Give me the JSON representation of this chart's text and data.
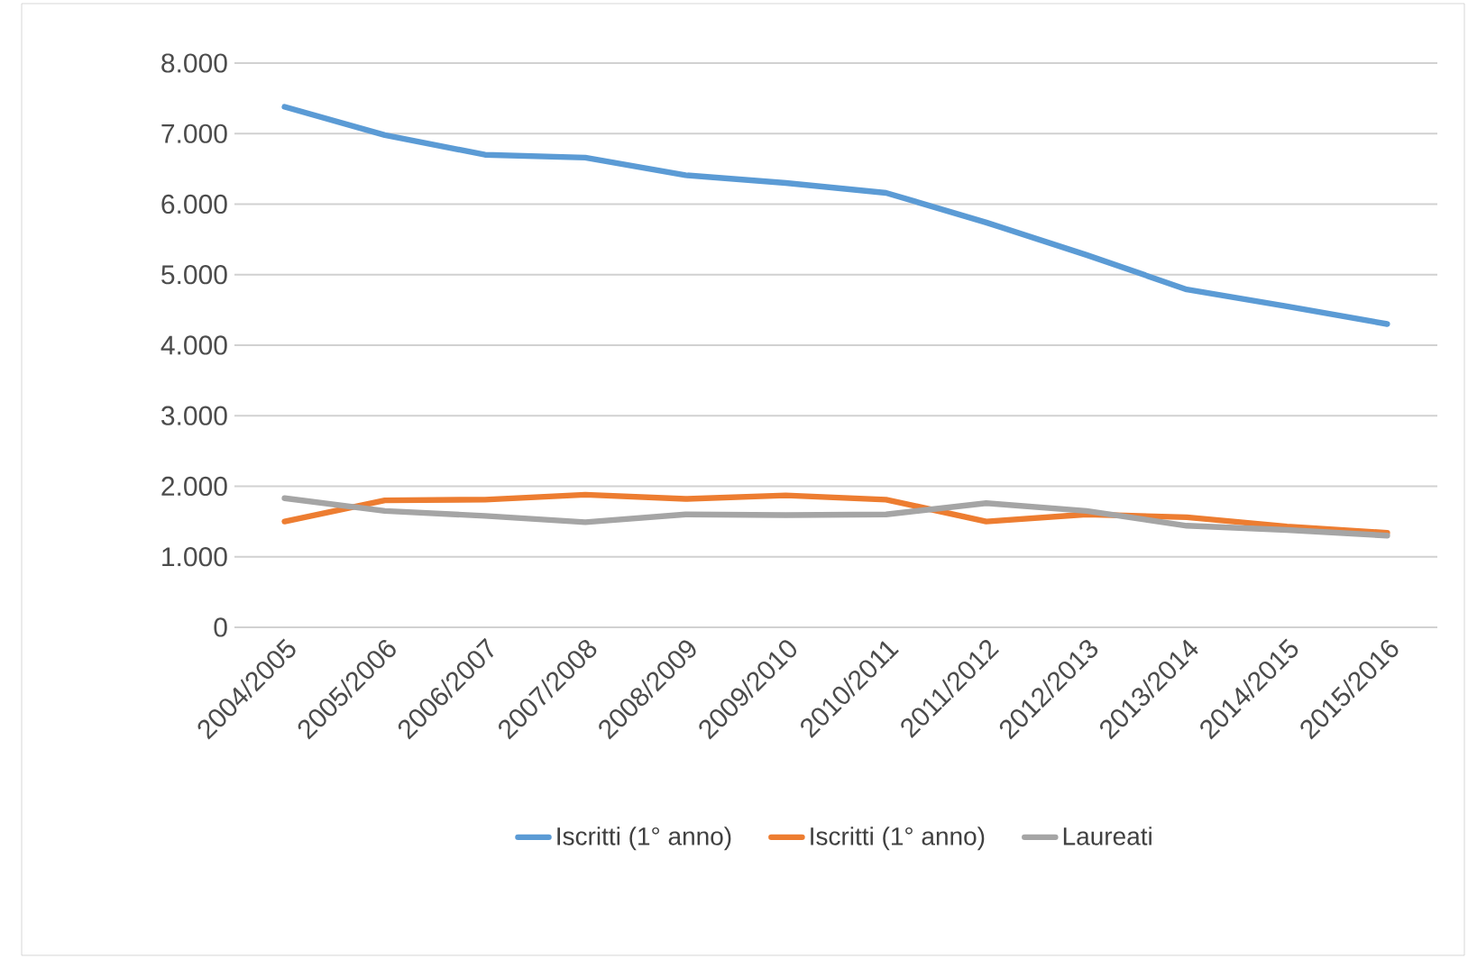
{
  "chart_data": {
    "type": "line",
    "categories": [
      "2004/2005",
      "2005/2006",
      "2006/2007",
      "2007/2008",
      "2008/2009",
      "2009/2010",
      "2010/2011",
      "2011/2012",
      "2012/2013",
      "2013/2014",
      "2014/2015",
      "2015/2016"
    ],
    "series": [
      {
        "name": "Iscritti (1° anno)",
        "color": "#5b9bd5",
        "values": [
          7380,
          6980,
          6700,
          6660,
          6410,
          6300,
          6160,
          5740,
          5280,
          4790,
          4550,
          4300
        ]
      },
      {
        "name": "Iscritti (1° anno)",
        "color": "#ed7d31",
        "values": [
          1500,
          1800,
          1810,
          1880,
          1820,
          1870,
          1810,
          1500,
          1600,
          1560,
          1430,
          1340
        ]
      },
      {
        "name": "Laureati",
        "color": "#a5a5a5",
        "values": [
          1830,
          1650,
          1580,
          1490,
          1600,
          1590,
          1600,
          1760,
          1650,
          1440,
          1380,
          1300
        ]
      }
    ],
    "ylim": [
      0,
      8000
    ],
    "yticks": [
      {
        "value": 0,
        "label": "0"
      },
      {
        "value": 1000,
        "label": "1.000"
      },
      {
        "value": 2000,
        "label": "2.000"
      },
      {
        "value": 3000,
        "label": "3.000"
      },
      {
        "value": 4000,
        "label": "4.000"
      },
      {
        "value": 5000,
        "label": "5.000"
      },
      {
        "value": 6000,
        "label": "6.000"
      },
      {
        "value": 7000,
        "label": "7.000"
      },
      {
        "value": 8000,
        "label": "8.000"
      }
    ],
    "grid": "y",
    "legend": "bottom",
    "marker": "none",
    "line_style": "solid"
  }
}
